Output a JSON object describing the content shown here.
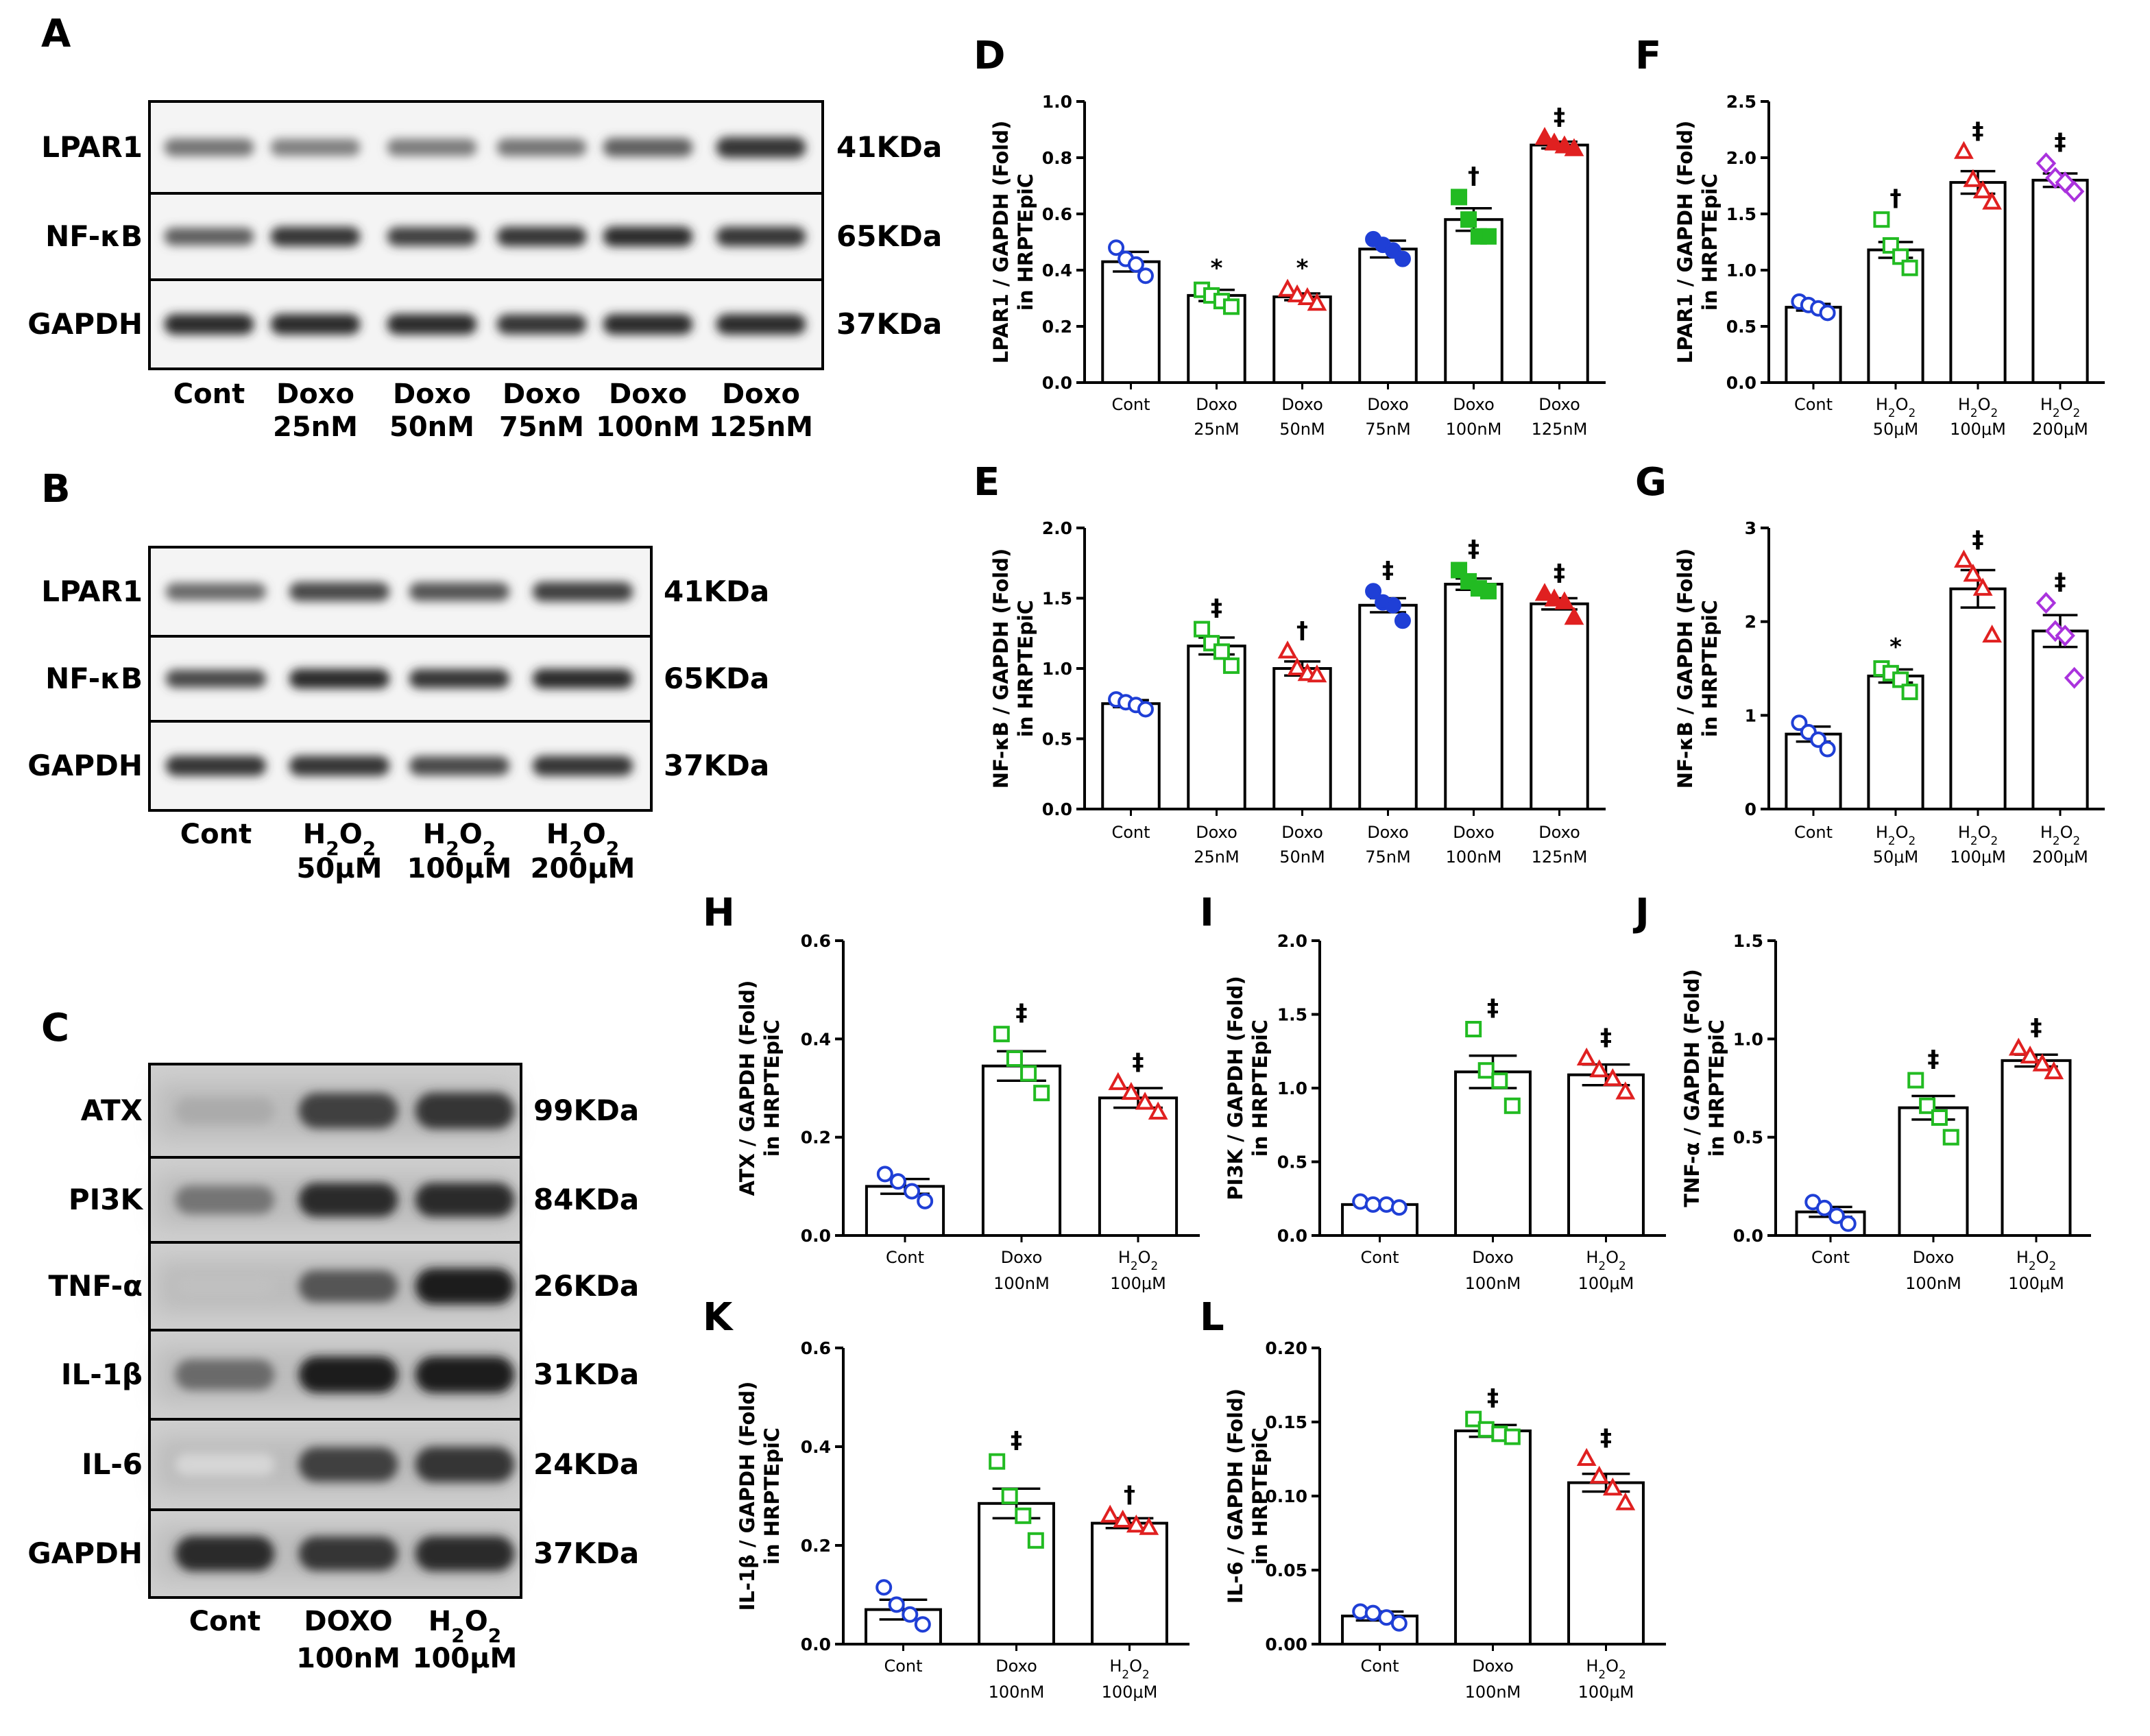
{
  "blots": [
    {
      "id": "A",
      "panel_label": "A",
      "rows": [
        {
          "label": "LPAR1",
          "kda": "41KDa",
          "intensity": [
            0.55,
            0.5,
            0.52,
            0.55,
            0.65,
            0.85
          ]
        },
        {
          "label": "NF-κB",
          "kda": "65KDa",
          "intensity": [
            0.65,
            0.85,
            0.8,
            0.85,
            0.9,
            0.85
          ]
        },
        {
          "label": "GAPDH",
          "kda": "37KDa",
          "intensity": [
            0.9,
            0.9,
            0.9,
            0.85,
            0.9,
            0.9
          ]
        }
      ],
      "lanes": [
        {
          "l1": "Cont",
          "l2": ""
        },
        {
          "l1": "Doxo",
          "l2": "25nM"
        },
        {
          "l1": "Doxo",
          "l2": "50nM"
        },
        {
          "l1": "Doxo",
          "l2": "75nM"
        },
        {
          "l1": "Doxo",
          "l2": "100nM"
        },
        {
          "l1": "Doxo",
          "l2": "125nM"
        }
      ]
    },
    {
      "id": "B",
      "panel_label": "B",
      "rows": [
        {
          "label": "LPAR1",
          "kda": "41KDa",
          "intensity": [
            0.6,
            0.75,
            0.7,
            0.8
          ]
        },
        {
          "label": "NF-κB",
          "kda": "65KDa",
          "intensity": [
            0.75,
            0.9,
            0.85,
            0.9
          ]
        },
        {
          "label": "GAPDH",
          "kda": "37KDa",
          "intensity": [
            0.85,
            0.85,
            0.75,
            0.85
          ]
        }
      ],
      "lanes": [
        {
          "l1": "Cont",
          "l2": ""
        },
        {
          "l1": "H2O2",
          "l2": "50μM"
        },
        {
          "l1": "H2O2",
          "l2": "100μM"
        },
        {
          "l1": "H2O2",
          "l2": "200μM"
        }
      ]
    },
    {
      "id": "C",
      "panel_label": "C",
      "rows": [
        {
          "label": "ATX",
          "kda": "99KDa",
          "intensity": [
            0.3,
            0.8,
            0.85
          ]
        },
        {
          "label": "PI3K",
          "kda": "84KDa",
          "intensity": [
            0.55,
            0.9,
            0.9
          ]
        },
        {
          "label": "TNF-α",
          "kda": "26KDa",
          "intensity": [
            0.2,
            0.7,
            0.95
          ]
        },
        {
          "label": "IL-1β",
          "kda": "31KDa",
          "intensity": [
            0.6,
            0.95,
            0.95
          ]
        },
        {
          "label": "IL-6",
          "kda": "24KDa",
          "intensity": [
            0.1,
            0.8,
            0.85
          ]
        },
        {
          "label": "GAPDH",
          "kda": "37KDa",
          "intensity": [
            0.9,
            0.85,
            0.9
          ]
        }
      ],
      "lanes": [
        {
          "l1": "Cont",
          "l2": ""
        },
        {
          "l1": "DOXO",
          "l2": "100nM"
        },
        {
          "l1": "H2O2",
          "l2": "100μM"
        }
      ]
    }
  ],
  "chart_data": [
    {
      "id": "D",
      "panel_label": "D",
      "type": "bar",
      "ylabel": [
        "LPAR1 / GAPDH (Fold)",
        "in HRPTEpiC"
      ],
      "ylim": [
        0,
        1.0
      ],
      "yticks": [
        "0.0",
        "0.2",
        "0.4",
        "0.6",
        "0.8",
        "1.0"
      ],
      "categories": [
        {
          "l1": "Cont",
          "l2": ""
        },
        {
          "l1": "Doxo",
          "l2": "25nM"
        },
        {
          "l1": "Doxo",
          "l2": "50nM"
        },
        {
          "l1": "Doxo",
          "l2": "75nM"
        },
        {
          "l1": "Doxo",
          "l2": "100nM"
        },
        {
          "l1": "Doxo",
          "l2": "125nM"
        }
      ],
      "values": [
        0.43,
        0.31,
        0.305,
        0.475,
        0.58,
        0.845
      ],
      "sem": [
        0.035,
        0.02,
        0.012,
        0.03,
        0.04,
        0.012
      ],
      "points": [
        [
          0.48,
          0.44,
          0.42,
          0.38
        ],
        [
          0.33,
          0.31,
          0.29,
          0.27
        ],
        [
          0.33,
          0.31,
          0.3,
          0.28
        ],
        [
          0.51,
          0.49,
          0.47,
          0.44
        ],
        [
          0.66,
          0.58,
          0.52,
          0.52
        ],
        [
          0.87,
          0.85,
          0.84,
          0.83
        ]
      ],
      "marker": [
        "circle-open",
        "square-open",
        "triangle-open",
        "circle",
        "square",
        "triangle"
      ],
      "color": [
        "#1f3fd6",
        "#22bb22",
        "#e02020",
        "#1f3fd6",
        "#22bb22",
        "#e02020"
      ],
      "sig": [
        "",
        "*",
        "*",
        "",
        "†",
        "‡"
      ]
    },
    {
      "id": "E",
      "panel_label": "E",
      "type": "bar",
      "ylabel": [
        "NF-κB / GAPDH (Fold)",
        "in HRPTEpiC"
      ],
      "ylim": [
        0,
        2.0
      ],
      "yticks": [
        "0.0",
        "0.5",
        "1.0",
        "1.5",
        "2.0"
      ],
      "categories": [
        {
          "l1": "Cont",
          "l2": ""
        },
        {
          "l1": "Doxo",
          "l2": "25nM"
        },
        {
          "l1": "Doxo",
          "l2": "50nM"
        },
        {
          "l1": "Doxo",
          "l2": "75nM"
        },
        {
          "l1": "Doxo",
          "l2": "100nM"
        },
        {
          "l1": "Doxo",
          "l2": "125nM"
        }
      ],
      "values": [
        0.75,
        1.16,
        1.0,
        1.45,
        1.6,
        1.46
      ],
      "sem": [
        0.025,
        0.06,
        0.05,
        0.05,
        0.04,
        0.04
      ],
      "points": [
        [
          0.78,
          0.76,
          0.74,
          0.71
        ],
        [
          1.28,
          1.18,
          1.12,
          1.02
        ],
        [
          1.12,
          1.0,
          0.96,
          0.95
        ],
        [
          1.55,
          1.47,
          1.45,
          1.34
        ],
        [
          1.7,
          1.62,
          1.57,
          1.55
        ],
        [
          1.53,
          1.49,
          1.47,
          1.36
        ]
      ],
      "marker": [
        "circle-open",
        "square-open",
        "triangle-open",
        "circle",
        "square",
        "triangle"
      ],
      "color": [
        "#1f3fd6",
        "#22bb22",
        "#e02020",
        "#1f3fd6",
        "#22bb22",
        "#e02020"
      ],
      "sig": [
        "",
        "‡",
        "†",
        "‡",
        "‡",
        "‡"
      ]
    },
    {
      "id": "F",
      "panel_label": "F",
      "type": "bar",
      "ylabel": [
        "LPAR1 / GAPDH (Fold)",
        "in HRPTEpiC"
      ],
      "ylim": [
        0,
        2.5
      ],
      "yticks": [
        "0.0",
        "0.5",
        "1.0",
        "1.5",
        "2.0",
        "2.5"
      ],
      "categories": [
        {
          "l1": "Cont",
          "l2": ""
        },
        {
          "l1": "H2O2",
          "l2": "50μM"
        },
        {
          "l1": "H2O2",
          "l2": "100μM"
        },
        {
          "l1": "H2O2",
          "l2": "200μM"
        }
      ],
      "values": [
        0.67,
        1.18,
        1.78,
        1.8
      ],
      "sem": [
        0.03,
        0.07,
        0.1,
        0.06
      ],
      "points": [
        [
          0.72,
          0.69,
          0.66,
          0.62
        ],
        [
          1.45,
          1.22,
          1.12,
          1.02
        ],
        [
          2.05,
          1.8,
          1.7,
          1.6
        ],
        [
          1.95,
          1.82,
          1.78,
          1.7
        ]
      ],
      "marker": [
        "circle-open",
        "square-open",
        "triangle-open",
        "diamond-open"
      ],
      "color": [
        "#1f3fd6",
        "#22bb22",
        "#e02020",
        "#aa33dd"
      ],
      "sig": [
        "",
        "†",
        "‡",
        "‡"
      ]
    },
    {
      "id": "G",
      "panel_label": "G",
      "type": "bar",
      "ylabel": [
        "NF-κB / GAPDH (Fold)",
        "in HRPTEpiC"
      ],
      "ylim": [
        0,
        3
      ],
      "yticks": [
        "0",
        "1",
        "2",
        "3"
      ],
      "categories": [
        {
          "l1": "Cont",
          "l2": ""
        },
        {
          "l1": "H2O2",
          "l2": "50μM"
        },
        {
          "l1": "H2O2",
          "l2": "100μM"
        },
        {
          "l1": "H2O2",
          "l2": "200μM"
        }
      ],
      "values": [
        0.8,
        1.42,
        2.35,
        1.9
      ],
      "sem": [
        0.08,
        0.07,
        0.2,
        0.17
      ],
      "points": [
        [
          0.92,
          0.82,
          0.74,
          0.64
        ],
        [
          1.5,
          1.45,
          1.38,
          1.25
        ],
        [
          2.65,
          2.5,
          2.35,
          1.85
        ],
        [
          2.2,
          1.9,
          1.85,
          1.4
        ]
      ],
      "marker": [
        "circle-open",
        "square-open",
        "triangle-open",
        "diamond-open"
      ],
      "color": [
        "#1f3fd6",
        "#22bb22",
        "#e02020",
        "#aa33dd"
      ],
      "sig": [
        "",
        "*",
        "‡",
        "‡"
      ]
    },
    {
      "id": "H",
      "panel_label": "H",
      "type": "bar",
      "ylabel": [
        "ATX / GAPDH (Fold)",
        "in HRPTEpiC"
      ],
      "ylim": [
        0,
        0.6
      ],
      "yticks": [
        "0.0",
        "0.2",
        "0.4",
        "0.6"
      ],
      "categories": [
        {
          "l1": "Cont",
          "l2": ""
        },
        {
          "l1": "Doxo",
          "l2": "100nM"
        },
        {
          "l1": "H2O2",
          "l2": "100μM"
        }
      ],
      "values": [
        0.1,
        0.345,
        0.28
      ],
      "sem": [
        0.015,
        0.03,
        0.02
      ],
      "points": [
        [
          0.125,
          0.11,
          0.09,
          0.07
        ],
        [
          0.41,
          0.36,
          0.33,
          0.29
        ],
        [
          0.31,
          0.29,
          0.27,
          0.25
        ]
      ],
      "marker": [
        "circle-open",
        "square-open",
        "triangle-open"
      ],
      "color": [
        "#1f3fd6",
        "#22bb22",
        "#e02020"
      ],
      "sig": [
        "",
        "‡",
        "‡"
      ]
    },
    {
      "id": "I",
      "panel_label": "I",
      "type": "bar",
      "ylabel": [
        "PI3K / GAPDH (Fold)",
        "in HRPTEpiC"
      ],
      "ylim": [
        0,
        2.0
      ],
      "yticks": [
        "0.0",
        "0.5",
        "1.0",
        "1.5",
        "2.0"
      ],
      "categories": [
        {
          "l1": "Cont",
          "l2": ""
        },
        {
          "l1": "Doxo",
          "l2": "100nM"
        },
        {
          "l1": "H2O2",
          "l2": "100μM"
        }
      ],
      "values": [
        0.21,
        1.11,
        1.09
      ],
      "sem": [
        0.01,
        0.11,
        0.07
      ],
      "points": [
        [
          0.23,
          0.21,
          0.21,
          0.19
        ],
        [
          1.4,
          1.12,
          1.05,
          0.88
        ],
        [
          1.2,
          1.12,
          1.06,
          0.97
        ]
      ],
      "marker": [
        "circle-open",
        "square-open",
        "triangle-open"
      ],
      "color": [
        "#1f3fd6",
        "#22bb22",
        "#e02020"
      ],
      "sig": [
        "",
        "‡",
        "‡"
      ]
    },
    {
      "id": "J",
      "panel_label": "J",
      "type": "bar",
      "ylabel": [
        "TNF-α / GAPDH (Fold)",
        "in HRPTEpiC"
      ],
      "ylim": [
        0,
        1.5
      ],
      "yticks": [
        "0.0",
        "0.5",
        "1.0",
        "1.5"
      ],
      "categories": [
        {
          "l1": "Cont",
          "l2": ""
        },
        {
          "l1": "Doxo",
          "l2": "100nM"
        },
        {
          "l1": "H2O2",
          "l2": "100μM"
        }
      ],
      "values": [
        0.12,
        0.65,
        0.89
      ],
      "sem": [
        0.025,
        0.06,
        0.03
      ],
      "points": [
        [
          0.17,
          0.14,
          0.1,
          0.06
        ],
        [
          0.79,
          0.66,
          0.6,
          0.5
        ],
        [
          0.95,
          0.91,
          0.87,
          0.83
        ]
      ],
      "marker": [
        "circle-open",
        "square-open",
        "triangle-open"
      ],
      "color": [
        "#1f3fd6",
        "#22bb22",
        "#e02020"
      ],
      "sig": [
        "",
        "‡",
        "‡"
      ]
    },
    {
      "id": "K",
      "panel_label": "K",
      "type": "bar",
      "ylabel": [
        "IL-1β / GAPDH (Fold)",
        "in HRPTEpiC"
      ],
      "ylim": [
        0,
        0.6
      ],
      "yticks": [
        "0.0",
        "0.2",
        "0.4",
        "0.6"
      ],
      "categories": [
        {
          "l1": "Cont",
          "l2": ""
        },
        {
          "l1": "Doxo",
          "l2": "100nM"
        },
        {
          "l1": "H2O2",
          "l2": "100μM"
        }
      ],
      "values": [
        0.07,
        0.285,
        0.245
      ],
      "sem": [
        0.02,
        0.03,
        0.01
      ],
      "points": [
        [
          0.115,
          0.08,
          0.06,
          0.04
        ],
        [
          0.37,
          0.3,
          0.26,
          0.21
        ],
        [
          0.26,
          0.25,
          0.24,
          0.235
        ]
      ],
      "marker": [
        "circle-open",
        "square-open",
        "triangle-open"
      ],
      "color": [
        "#1f3fd6",
        "#22bb22",
        "#e02020"
      ],
      "sig": [
        "",
        "‡",
        "†"
      ]
    },
    {
      "id": "L",
      "panel_label": "L",
      "type": "bar",
      "ylabel": [
        "IL-6 / GAPDH (Fold)",
        "in HRPTEpiC"
      ],
      "ylim": [
        0,
        0.2
      ],
      "yticks": [
        "0.00",
        "0.05",
        "0.10",
        "0.15",
        "0.20"
      ],
      "categories": [
        {
          "l1": "Cont",
          "l2": ""
        },
        {
          "l1": "Doxo",
          "l2": "100nM"
        },
        {
          "l1": "H2O2",
          "l2": "100μM"
        }
      ],
      "values": [
        0.019,
        0.144,
        0.109
      ],
      "sem": [
        0.003,
        0.004,
        0.006
      ],
      "points": [
        [
          0.022,
          0.021,
          0.018,
          0.014
        ],
        [
          0.152,
          0.145,
          0.142,
          0.14
        ],
        [
          0.125,
          0.113,
          0.105,
          0.095
        ]
      ],
      "marker": [
        "circle-open",
        "square-open",
        "triangle-open"
      ],
      "color": [
        "#1f3fd6",
        "#22bb22",
        "#e02020"
      ],
      "sig": [
        "",
        "‡",
        "‡"
      ]
    }
  ]
}
